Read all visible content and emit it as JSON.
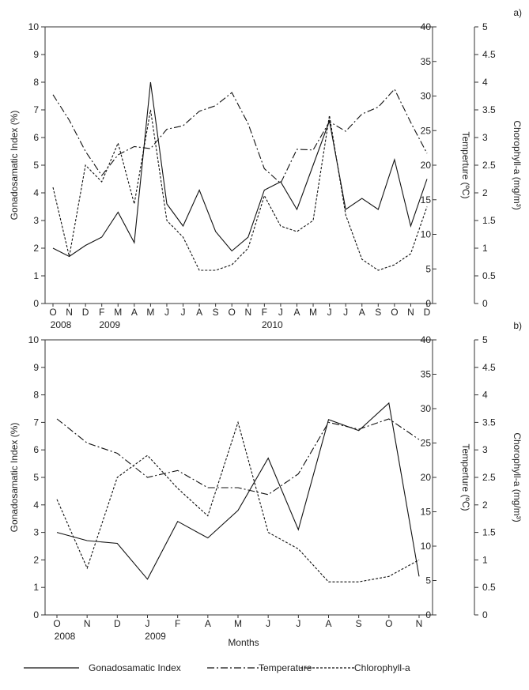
{
  "chart_data": [
    {
      "type": "line",
      "panel_label": "a)",
      "categories": [
        "O",
        "N",
        "D",
        "F",
        "M",
        "A",
        "M",
        "J",
        "J",
        "A",
        "S",
        "O",
        "N",
        "F",
        "J",
        "A",
        "M",
        "J",
        "J",
        "A",
        "S",
        "O",
        "N",
        "D"
      ],
      "year_labels": [
        {
          "text": "2008",
          "index": 0
        },
        {
          "text": "2009",
          "index": 3
        },
        {
          "text": "2010",
          "index": 13
        }
      ],
      "ylabel_left": "Gonadosamatic Index (%)",
      "ylabel_right1": "Temperture (ºC)",
      "ylabel_right2": "Chorophyll-a (mg/m³)",
      "ylim_left": [
        0,
        10
      ],
      "yticks_left": [
        "0",
        "1",
        "2",
        "3",
        "4",
        "5",
        "6",
        "7",
        "8",
        "9",
        "10"
      ],
      "ylim_right1": [
        0,
        40
      ],
      "yticks_right1": [
        "0",
        "5",
        "10",
        "15",
        "20",
        "25",
        "30",
        "35",
        "40"
      ],
      "ylim_right2": [
        0,
        5
      ],
      "yticks_right2": [
        "0",
        "0.5",
        "1",
        "1.5",
        "2",
        "2.5",
        "3",
        "3.5",
        "4",
        "4.5",
        "5"
      ],
      "series": [
        {
          "name": "Gonadosamatic Index",
          "axis": "left",
          "dash": "solid",
          "values": [
            2.0,
            1.7,
            2.1,
            2.4,
            3.3,
            2.2,
            8.0,
            3.6,
            2.8,
            4.1,
            2.6,
            1.9,
            2.4,
            4.1,
            4.4,
            3.4,
            5.0,
            6.6,
            3.4,
            3.8,
            3.4,
            5.2,
            2.8,
            4.5
          ]
        },
        {
          "name": "Temperature",
          "axis": "right1",
          "dash": "dashdot",
          "values": [
            30.2,
            26.5,
            22.0,
            18.5,
            21.5,
            22.7,
            22.4,
            25.2,
            25.7,
            27.8,
            28.6,
            30.5,
            26.0,
            19.5,
            17.4,
            22.3,
            22.2,
            26.3,
            24.9,
            27.4,
            28.4,
            31.0,
            26.2,
            21.7
          ]
        },
        {
          "name": "Chlorophyll-a",
          "axis": "right2",
          "dash": "dotted",
          "values": [
            2.1,
            0.85,
            2.5,
            2.2,
            2.9,
            1.8,
            3.5,
            1.5,
            1.2,
            0.6,
            0.6,
            0.7,
            1.0,
            1.95,
            1.4,
            1.3,
            1.5,
            3.4,
            1.6,
            0.8,
            0.6,
            0.7,
            0.9,
            1.75
          ]
        }
      ]
    },
    {
      "type": "line",
      "panel_label": "b)",
      "categories": [
        "O",
        "N",
        "D",
        "J",
        "F",
        "A",
        "M",
        "J",
        "J",
        "A",
        "S",
        "O",
        "N"
      ],
      "year_labels": [
        {
          "text": "2008",
          "index": 0
        },
        {
          "text": "2009",
          "index": 3
        }
      ],
      "xlabel": "Months",
      "ylabel_left": "Gonadosamatic Index (%)",
      "ylabel_right1": "Temperture (ºC)",
      "ylabel_right2": "Chorophyll-a (mg/m³)",
      "ylim_left": [
        0,
        10
      ],
      "yticks_left": [
        "0",
        "1",
        "2",
        "3",
        "4",
        "5",
        "6",
        "7",
        "8",
        "9",
        "10"
      ],
      "ylim_right1": [
        0,
        40
      ],
      "yticks_right1": [
        "0",
        "5",
        "10",
        "15",
        "20",
        "25",
        "30",
        "35",
        "40"
      ],
      "ylim_right2": [
        0,
        5
      ],
      "yticks_right2": [
        "0",
        "0.5",
        "1",
        "1.5",
        "2",
        "2.5",
        "3",
        "3.5",
        "4",
        "4.5",
        "5"
      ],
      "series": [
        {
          "name": "Gonadosamatic Index",
          "axis": "left",
          "dash": "solid",
          "values": [
            3.0,
            2.7,
            2.6,
            1.3,
            3.4,
            2.8,
            3.8,
            5.7,
            3.1,
            7.1,
            6.7,
            7.7,
            1.4
          ]
        },
        {
          "name": "Temperature",
          "axis": "right1",
          "dash": "dashdot",
          "values": [
            28.5,
            25.0,
            23.5,
            20.0,
            21.0,
            18.5,
            18.5,
            17.5,
            20.5,
            28.0,
            27.0,
            28.5,
            25.5
          ]
        },
        {
          "name": "Chlorophyll-a",
          "axis": "right2",
          "dash": "dotted",
          "values": [
            2.1,
            0.85,
            2.5,
            2.9,
            2.3,
            1.8,
            3.5,
            1.5,
            1.2,
            0.6,
            0.6,
            0.7,
            1.0
          ]
        }
      ]
    }
  ],
  "legend": [
    {
      "label": "Gonadosamatic Index",
      "dash": "solid"
    },
    {
      "label": "Temperature",
      "dash": "dashdot"
    },
    {
      "label": "Chlorophyll-a",
      "dash": "dotted"
    }
  ]
}
